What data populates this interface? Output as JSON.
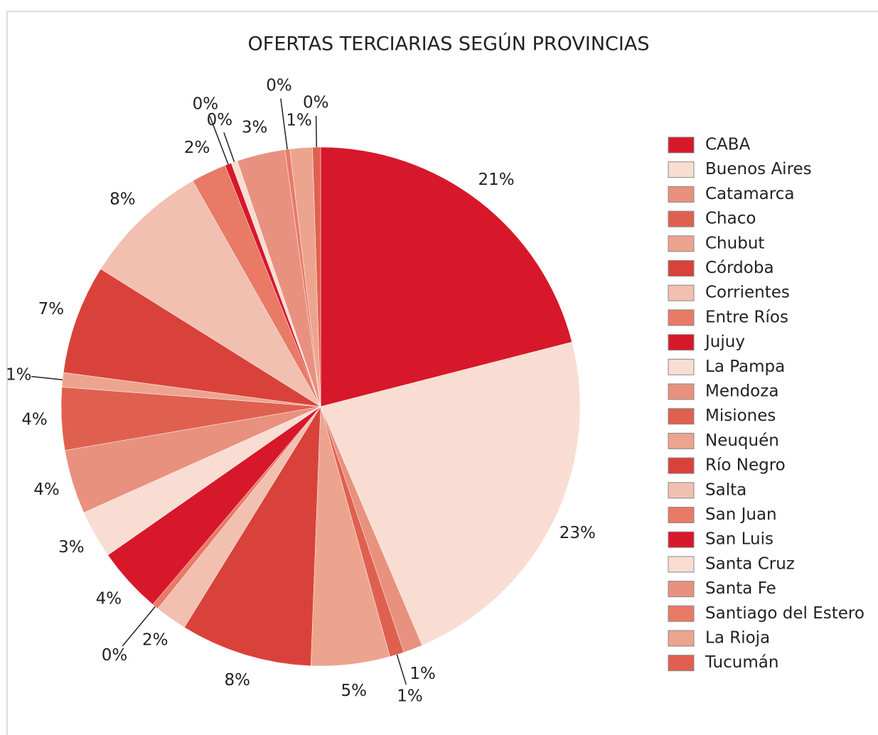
{
  "chart_data": {
    "type": "pie",
    "title": "OFERTAS TERCIARIAS SEGÚN PROVINCIAS",
    "categories": [
      "CABA",
      "Buenos Aires",
      "Catamarca",
      "Chaco",
      "Chubut",
      "Córdoba",
      "Corrientes",
      "Entre Ríos",
      "Jujuy",
      "La Pampa",
      "Mendoza",
      "Misiones",
      "Neuquén",
      "Río Negro",
      "Salta",
      "San Juan",
      "San Luis",
      "Santa Cruz",
      "Santa Fe",
      "Santiago del Estero",
      "La Rioja",
      "Tucumán"
    ],
    "values": [
      21.0,
      22.6,
      1.2,
      0.9,
      4.9,
      8.2,
      2.0,
      0.4,
      4.1,
      3.0,
      4.0,
      3.9,
      0.9,
      6.8,
      7.9,
      2.2,
      0.4,
      0.4,
      3.0,
      0.3,
      1.4,
      0.5
    ],
    "value_labels": [
      "21%",
      "23%",
      "1%",
      "1%",
      "5%",
      "8%",
      "2%",
      "0%",
      "4%",
      "3%",
      "4%",
      "4%",
      "1%",
      "7%",
      "8%",
      "2%",
      "0%",
      "0%",
      "3%",
      "0%",
      "1%",
      "0%"
    ],
    "colors": [
      "#d7182a",
      "#f9ddd3",
      "#e8917e",
      "#e06050",
      "#eda48f",
      "#d9423a",
      "#f2c0b0",
      "#e87a66",
      "#d7182a",
      "#f9ddd3",
      "#e8917e",
      "#e06050",
      "#eda48f",
      "#d9423a",
      "#f2c0b0",
      "#e87a66",
      "#d7182a",
      "#f9ddd3",
      "#e8917e",
      "#e87a66",
      "#eda48f",
      "#e06050"
    ],
    "legend": "right"
  }
}
